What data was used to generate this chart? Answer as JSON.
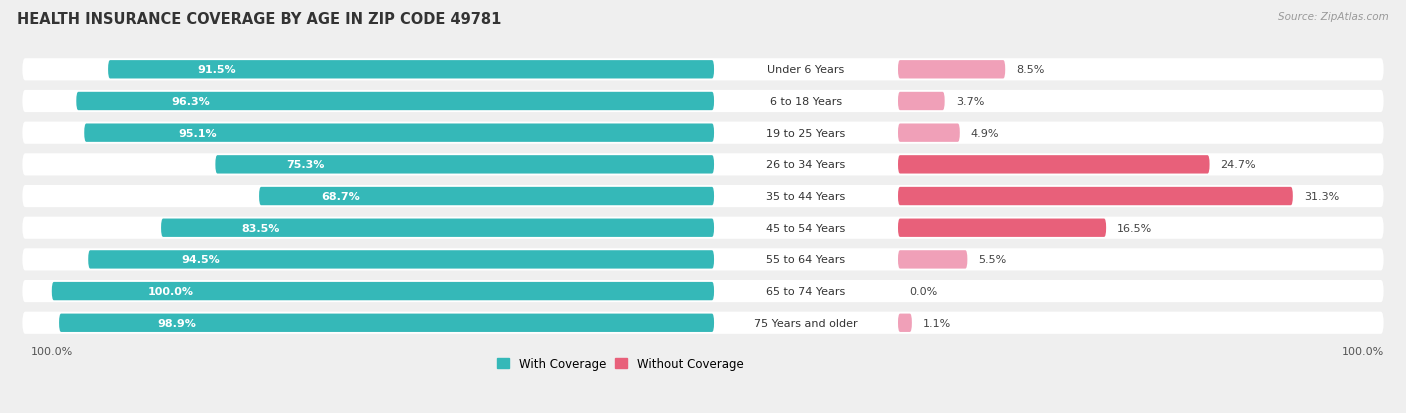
{
  "title": "HEALTH INSURANCE COVERAGE BY AGE IN ZIP CODE 49781",
  "source": "Source: ZipAtlas.com",
  "categories": [
    "Under 6 Years",
    "6 to 18 Years",
    "19 to 25 Years",
    "26 to 34 Years",
    "35 to 44 Years",
    "45 to 54 Years",
    "55 to 64 Years",
    "65 to 74 Years",
    "75 Years and older"
  ],
  "with_coverage": [
    91.5,
    96.3,
    95.1,
    75.3,
    68.7,
    83.5,
    94.5,
    100.0,
    98.9
  ],
  "without_coverage": [
    8.5,
    3.7,
    4.9,
    24.7,
    31.3,
    16.5,
    5.5,
    0.0,
    1.1
  ],
  "color_with": "#35b8b8",
  "color_without_dark": "#e8607a",
  "color_without_light": "#f0a0b8",
  "bg_color": "#efefef",
  "title_fontsize": 10.5,
  "label_fontsize": 8.0,
  "tick_fontsize": 8.0,
  "legend_fontsize": 8.5,
  "without_dark_threshold": 15.0
}
